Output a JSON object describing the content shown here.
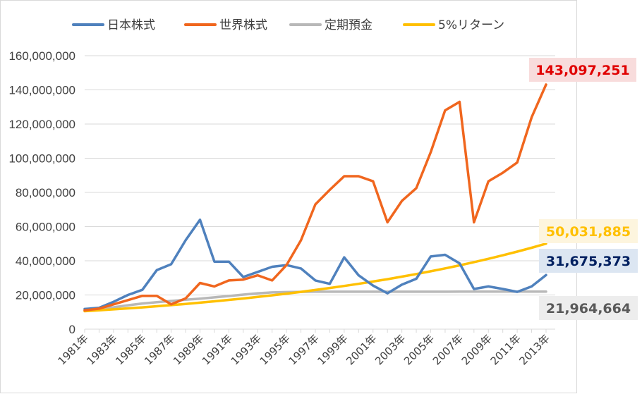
{
  "chart_data": {
    "type": "line",
    "title": "",
    "xlabel": "",
    "ylabel": "",
    "ylim": [
      0,
      160000000
    ],
    "yticks": [
      0,
      20000000,
      40000000,
      60000000,
      80000000,
      100000000,
      120000000,
      140000000,
      160000000
    ],
    "ytick_labels": [
      "0",
      "20,000,000",
      "40,000,000",
      "60,000,000",
      "80,000,000",
      "100,000,000",
      "120,000,000",
      "140,000,000",
      "160,000,000"
    ],
    "grid": true,
    "legend_position": "top",
    "x": [
      1981,
      1982,
      1983,
      1984,
      1985,
      1986,
      1987,
      1988,
      1989,
      1990,
      1991,
      1992,
      1993,
      1994,
      1995,
      1996,
      1997,
      1998,
      1999,
      2000,
      2001,
      2002,
      2003,
      2004,
      2005,
      2006,
      2007,
      2008,
      2009,
      2010,
      2011,
      2012,
      2013
    ],
    "xtick_labels": [
      "1981年",
      "1983年",
      "1985年",
      "1987年",
      "1989年",
      "1991年",
      "1993年",
      "1995年",
      "1997年",
      "1999年",
      "2001年",
      "2003年",
      "2005年",
      "2007年",
      "2009年",
      "2011年",
      "2013年"
    ],
    "series": [
      {
        "name": "日本株式",
        "color": "#4f81bd",
        "values": [
          11800000,
          12500000,
          16000000,
          20000000,
          23000000,
          34500000,
          38000000,
          52000000,
          64000000,
          39500000,
          39500000,
          30500000,
          33500000,
          36500000,
          37500000,
          35500000,
          28500000,
          26500000,
          42000000,
          31500000,
          25500000,
          21000000,
          26000000,
          29500000,
          42500000,
          43500000,
          38500000,
          23500000,
          25000000,
          23500000,
          21800000,
          25000000,
          31675373
        ],
        "end_label": "31,675,373",
        "label_color": "#002060",
        "label_bg": "#dce6f2"
      },
      {
        "name": "世界株式",
        "color": "#f0661e",
        "values": [
          11000000,
          12000000,
          14500000,
          17000000,
          19500000,
          19500000,
          14500000,
          18000000,
          27000000,
          25000000,
          28500000,
          29000000,
          31500000,
          28500000,
          37500000,
          52000000,
          73000000,
          81500000,
          89500000,
          89500000,
          86500000,
          62500000,
          75000000,
          82500000,
          103500000,
          128000000,
          133000000,
          62500000,
          86500000,
          91500000,
          97500000,
          124000000,
          143097251
        ],
        "end_label": "143,097,251",
        "label_color": "#e00000",
        "label_bg": "#f8dcdc"
      },
      {
        "name": "定期預金",
        "color": "#b8b8b8",
        "values": [
          11000000,
          11800000,
          12800000,
          14000000,
          15000000,
          15800000,
          16500000,
          17200000,
          17800000,
          18600000,
          19400000,
          20200000,
          21000000,
          21500000,
          21700000,
          21800000,
          21900000,
          21900000,
          21900000,
          21900000,
          21900000,
          21900000,
          21900000,
          21900000,
          21900000,
          21900000,
          21950000,
          21950000,
          21960000,
          21960000,
          21960000,
          21962000,
          21964664
        ],
        "end_label": "21,964,664",
        "label_color": "#595959",
        "label_bg": "#ededed"
      },
      {
        "name": "5%リターン",
        "color": "#ffc000",
        "values": [
          10500000,
          11025000,
          11576250,
          12155063,
          12762816,
          13400956,
          14071004,
          14774554,
          15513282,
          16288946,
          17103394,
          17958563,
          18856491,
          19799316,
          20789282,
          21828746,
          22920183,
          24066192,
          25269502,
          26532977,
          27859626,
          29252607,
          30715238,
          32250999,
          33863549,
          35556727,
          37334563,
          39201291,
          41161356,
          43219424,
          45380395,
          47649415,
          50031885
        ],
        "end_label": "50,031,885",
        "label_color": "#ffc000",
        "label_bg": "#fdf5de"
      }
    ]
  }
}
